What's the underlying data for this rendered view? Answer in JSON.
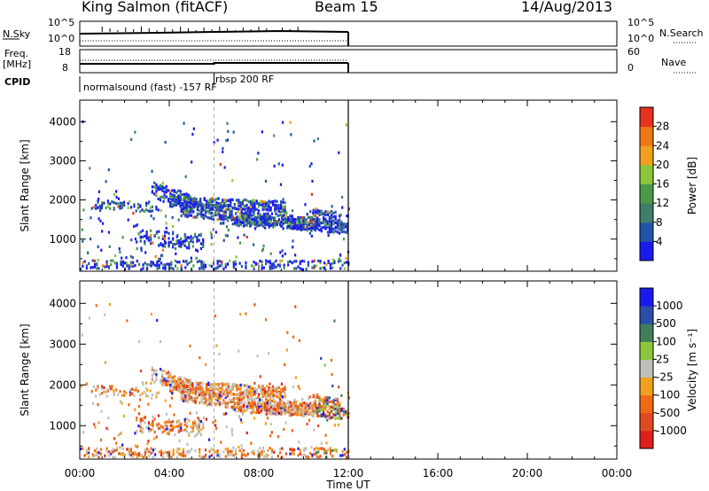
{
  "header": {
    "station": "King Salmon (fitACF)",
    "beam": "Beam 15",
    "date": "14/Aug/2013"
  },
  "top_panels": {
    "nsky_label": "N.Sky",
    "nsky_ticks": [
      "10^5",
      "10^0"
    ],
    "nsearch_label": "N.Search",
    "nsearch_ticks": [
      "10^5",
      "10^0"
    ],
    "freq_label": "Freq.",
    "freq_unit": "[MHz]",
    "freq_ticks": [
      "18",
      "8"
    ],
    "nave_label": "Nave",
    "nave_ticks": [
      "60",
      "0"
    ],
    "cpid_label": "CPID",
    "cpid_segments": [
      {
        "name": "normalsound (fast) -157 RF",
        "start_hour": 0.0,
        "end_hour": 6.0
      },
      {
        "name": "rbsp 200 RF",
        "start_hour": 6.0,
        "end_hour": 12.0
      }
    ]
  },
  "chart_data": [
    {
      "type": "heatmap",
      "parameter": "Power",
      "ylabel": "Slant Range [km]",
      "xlim": [
        0,
        24
      ],
      "ylim": [
        180,
        4550
      ],
      "yticks": [
        "1000",
        "2000",
        "3000",
        "4000"
      ],
      "colorbar": {
        "label": "Power [dB]",
        "range": [
          0,
          32
        ],
        "ticks": [
          "4",
          "8",
          "12",
          "16",
          "20",
          "24",
          "28"
        ],
        "colors": [
          "#1a1aee",
          "#2255aa",
          "#3d7f68",
          "#4a9a4a",
          "#8cc63c",
          "#f0a01e",
          "#f07814",
          "#e8321e"
        ]
      },
      "data_extent_hours": [
        0,
        12
      ],
      "features": [
        {
          "desc": "band",
          "t_start": 4.0,
          "t_end": 9.0,
          "range_km": 1900
        },
        {
          "desc": "band",
          "t_start": 4.5,
          "t_end": 10.5,
          "range_km": 1500
        },
        {
          "desc": "band",
          "t_start": 7.0,
          "t_end": 12.0,
          "range_km": 1200
        }
      ]
    },
    {
      "type": "heatmap",
      "parameter": "Velocity",
      "ylabel": "Slant Range [km]",
      "xlabel": "Time UT",
      "xlim": [
        0,
        24
      ],
      "ylim": [
        180,
        4550
      ],
      "xticks": [
        "00:00",
        "04:00",
        "08:00",
        "12:00",
        "16:00",
        "20:00",
        "00:00"
      ],
      "yticks": [
        "1000",
        "2000",
        "3000",
        "4000"
      ],
      "colorbar": {
        "label": "Velocity [m s⁻¹]",
        "ticks": [
          "1000",
          "500",
          "100",
          "25",
          "-25",
          "-100",
          "-500",
          "-1000"
        ],
        "colors": [
          "#1a1aee",
          "#2a4fa8",
          "#3f7f5c",
          "#8cc63c",
          "#c0c0b8",
          "#f0a01e",
          "#f06a14",
          "#e04a1e",
          "#e01e1e"
        ]
      },
      "data_extent_hours": [
        0,
        12
      ]
    }
  ]
}
